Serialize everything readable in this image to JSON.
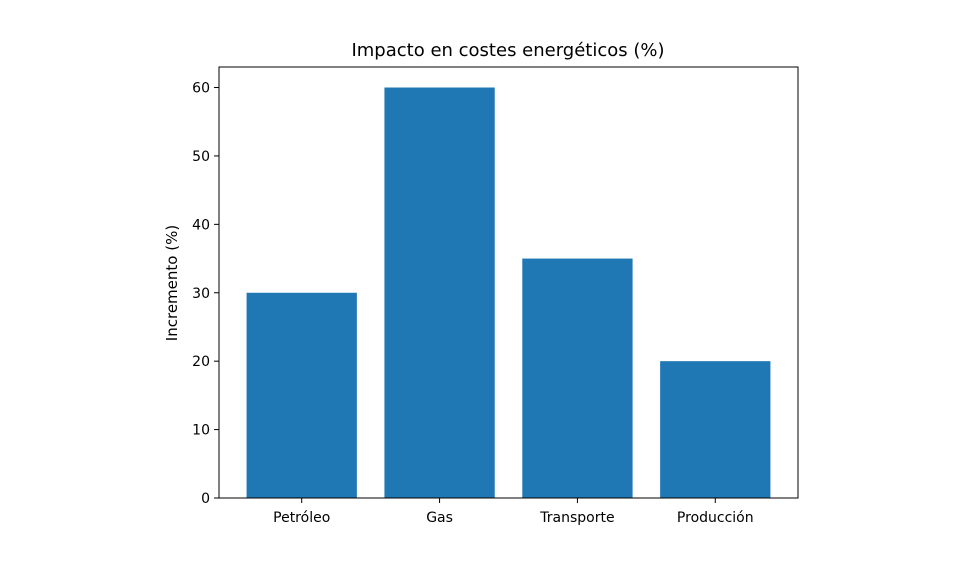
{
  "chart_data": {
    "type": "bar",
    "title": "Impacto en costes energéticos (%)",
    "xlabel": "",
    "ylabel": "Incremento (%)",
    "categories": [
      "Petróleo",
      "Gas",
      "Transporte",
      "Producción"
    ],
    "values": [
      30,
      60,
      35,
      20
    ],
    "ylim": [
      0,
      63
    ],
    "yticks": [
      0,
      10,
      20,
      30,
      40,
      50,
      60
    ],
    "bar_color": "#1f77b4",
    "grid": false,
    "legend": "none"
  }
}
